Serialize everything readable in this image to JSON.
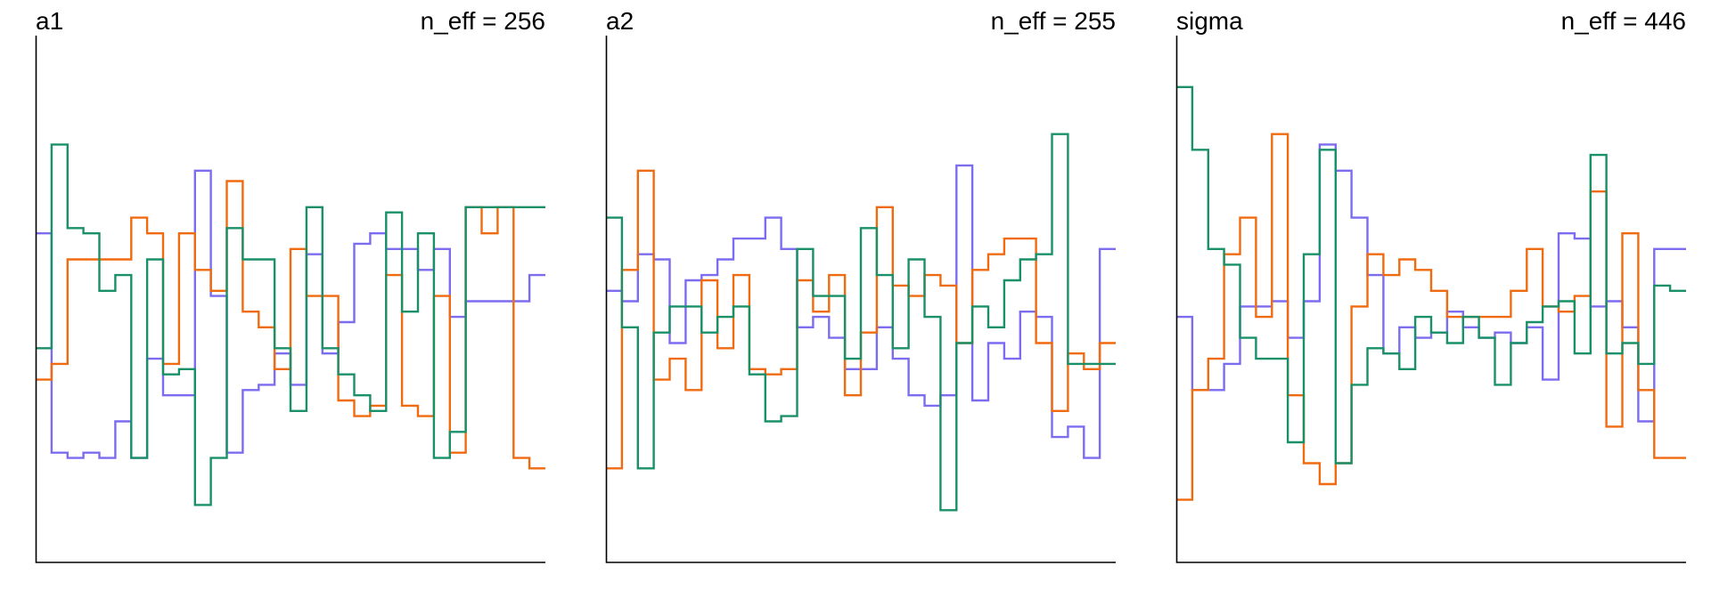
{
  "chart_data": [
    {
      "type": "line",
      "title": "a1",
      "annotation": "n_eff = 256",
      "x": [
        1,
        2,
        3,
        4,
        5,
        6,
        7,
        8,
        9,
        10,
        11,
        12,
        13,
        14,
        15,
        16,
        17,
        18,
        19,
        20,
        21,
        22,
        23,
        24,
        25,
        26,
        27,
        28,
        29,
        30,
        31,
        32
      ],
      "series": [
        {
          "color": "#7B6CF0",
          "values": [
            0.63,
            0.21,
            0.2,
            0.21,
            0.2,
            0.27,
            0.2,
            0.39,
            0.32,
            0.32,
            0.75,
            0.51,
            0.21,
            0.33,
            0.34,
            0.4,
            0.34,
            0.59,
            0.4,
            0.46,
            0.61,
            0.63,
            0.6,
            0.6,
            0.56,
            0.6,
            0.47,
            0.5,
            0.5,
            0.5,
            0.5,
            0.55
          ]
        },
        {
          "color": "#F06B10",
          "values": [
            0.35,
            0.38,
            0.58,
            0.58,
            0.58,
            0.58,
            0.66,
            0.63,
            0.38,
            0.63,
            0.56,
            0.52,
            0.73,
            0.48,
            0.45,
            0.37,
            0.6,
            0.51,
            0.51,
            0.31,
            0.28,
            0.3,
            0.55,
            0.3,
            0.28,
            0.51,
            0.21,
            0.68,
            0.63,
            0.68,
            0.2,
            0.18
          ]
        },
        {
          "color": "#1A9068",
          "values": [
            0.41,
            0.8,
            0.64,
            0.63,
            0.52,
            0.55,
            0.2,
            0.58,
            0.36,
            0.37,
            0.11,
            0.2,
            0.64,
            0.58,
            0.58,
            0.41,
            0.29,
            0.68,
            0.41,
            0.36,
            0.32,
            0.29,
            0.67,
            0.48,
            0.63,
            0.2,
            0.25,
            0.68,
            0.68,
            0.68,
            0.68,
            0.68
          ]
        }
      ]
    },
    {
      "type": "line",
      "title": "a2",
      "annotation": "n_eff = 255",
      "x": [
        1,
        2,
        3,
        4,
        5,
        6,
        7,
        8,
        9,
        10,
        11,
        12,
        13,
        14,
        15,
        16,
        17,
        18,
        19,
        20,
        21,
        22,
        23,
        24,
        25,
        26,
        27,
        28,
        29,
        30,
        31,
        32
      ],
      "series": [
        {
          "color": "#7B6CF0",
          "values": [
            0.52,
            0.5,
            0.59,
            0.58,
            0.42,
            0.54,
            0.55,
            0.58,
            0.62,
            0.62,
            0.66,
            0.6,
            0.45,
            0.47,
            0.43,
            0.37,
            0.37,
            0.45,
            0.39,
            0.32,
            0.3,
            0.32,
            0.76,
            0.31,
            0.42,
            0.39,
            0.48,
            0.47,
            0.24,
            0.26,
            0.2,
            0.6
          ]
        },
        {
          "color": "#F06B10",
          "values": [
            0.18,
            0.56,
            0.75,
            0.35,
            0.39,
            0.33,
            0.54,
            0.41,
            0.55,
            0.37,
            0.36,
            0.37,
            0.54,
            0.48,
            0.55,
            0.32,
            0.44,
            0.68,
            0.53,
            0.51,
            0.55,
            0.53,
            0.42,
            0.56,
            0.59,
            0.62,
            0.62,
            0.42,
            0.29,
            0.4,
            0.37,
            0.42
          ]
        },
        {
          "color": "#1A9068",
          "values": [
            0.66,
            0.45,
            0.18,
            0.44,
            0.49,
            0.49,
            0.44,
            0.47,
            0.49,
            0.36,
            0.27,
            0.28,
            0.6,
            0.51,
            0.51,
            0.39,
            0.64,
            0.55,
            0.41,
            0.58,
            0.47,
            0.1,
            0.42,
            0.49,
            0.45,
            0.54,
            0.58,
            0.59,
            0.82,
            0.38,
            0.38,
            0.38
          ]
        }
      ]
    },
    {
      "type": "line",
      "title": "sigma",
      "annotation": "n_eff = 446",
      "x": [
        1,
        2,
        3,
        4,
        5,
        6,
        7,
        8,
        9,
        10,
        11,
        12,
        13,
        14,
        15,
        16,
        17,
        18,
        19,
        20,
        21,
        22,
        23,
        24,
        25,
        26,
        27,
        28,
        29,
        30,
        31,
        32
      ],
      "series": [
        {
          "color": "#7B6CF0",
          "values": [
            0.47,
            0.33,
            0.33,
            0.38,
            0.49,
            0.49,
            0.5,
            0.43,
            0.5,
            0.8,
            0.75,
            0.66,
            0.55,
            0.4,
            0.45,
            0.43,
            0.44,
            0.48,
            0.45,
            0.43,
            0.44,
            0.42,
            0.45,
            0.35,
            0.63,
            0.62,
            0.49,
            0.5,
            0.45,
            0.27,
            0.6,
            0.6
          ]
        },
        {
          "color": "#F06B10",
          "values": [
            0.12,
            0.33,
            0.39,
            0.59,
            0.66,
            0.47,
            0.82,
            0.32,
            0.19,
            0.15,
            0.19,
            0.49,
            0.59,
            0.55,
            0.58,
            0.56,
            0.52,
            0.47,
            0.47,
            0.47,
            0.47,
            0.52,
            0.6,
            0.49,
            0.48,
            0.51,
            0.71,
            0.26,
            0.63,
            0.33,
            0.2,
            0.2
          ]
        },
        {
          "color": "#1A9068",
          "values": [
            0.91,
            0.79,
            0.6,
            0.57,
            0.43,
            0.39,
            0.39,
            0.23,
            0.59,
            0.79,
            0.19,
            0.34,
            0.41,
            0.4,
            0.37,
            0.47,
            0.44,
            0.42,
            0.47,
            0.43,
            0.34,
            0.42,
            0.46,
            0.49,
            0.5,
            0.4,
            0.78,
            0.4,
            0.42,
            0.38,
            0.53,
            0.52
          ]
        }
      ]
    }
  ]
}
